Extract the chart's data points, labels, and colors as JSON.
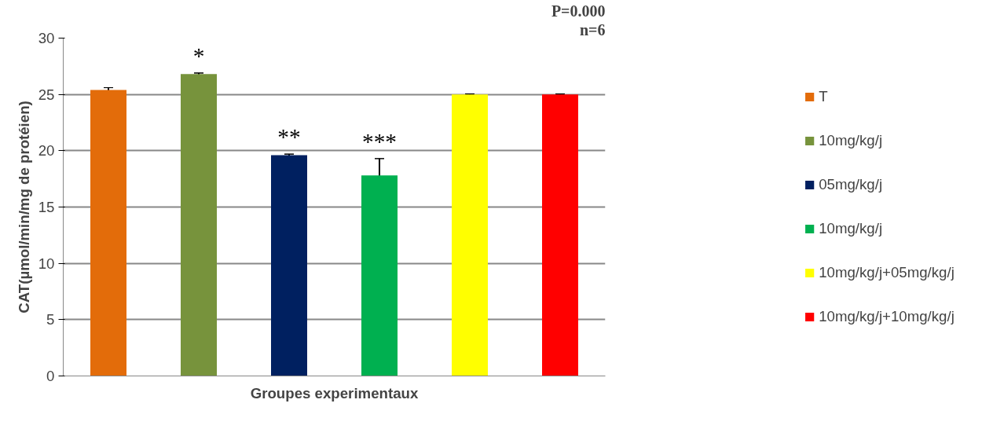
{
  "chart_data": {
    "type": "bar",
    "categories": [
      null,
      null,
      null,
      null,
      null,
      null
    ],
    "xlabel": "Groupes experimentaux",
    "ylabel": "CAT(µmol/min/mg de protéien)",
    "ylim": [
      0,
      30
    ],
    "yticks": [
      0,
      5,
      10,
      15,
      20,
      25,
      30
    ],
    "grid": "y",
    "legend": "right",
    "annotations": [
      "P=0.000",
      "n=6"
    ],
    "series": [
      {
        "name": "T",
        "color": "#e36c0a",
        "values": [
          25.4,
          null,
          null,
          null,
          null,
          null
        ],
        "errors": [
          0.2,
          null,
          null,
          null,
          null,
          null
        ]
      },
      {
        "name": "10mg/kg/j",
        "color": "#77933c",
        "values": [
          null,
          26.8,
          null,
          null,
          null,
          null
        ],
        "errors": [
          null,
          0.1,
          null,
          null,
          null,
          null
        ],
        "value_labels": [
          null,
          "*",
          null,
          null,
          null,
          null
        ]
      },
      {
        "name": "05mg/kg/j",
        "color": "#002060",
        "values": [
          null,
          null,
          19.6,
          null,
          null,
          null
        ],
        "errors": [
          null,
          null,
          0.1,
          null,
          null,
          null
        ],
        "value_labels": [
          null,
          null,
          "**",
          null,
          null,
          null
        ]
      },
      {
        "name": "10mg/kg/j",
        "color": "#00b050",
        "values": [
          null,
          null,
          null,
          17.8,
          null,
          null
        ],
        "errors": [
          null,
          null,
          null,
          1.5,
          null,
          null
        ],
        "value_labels": [
          null,
          null,
          null,
          "***",
          null,
          null
        ]
      },
      {
        "name": "10mg/kg/j+05mg/kg/j",
        "color": "#ffff00",
        "values": [
          null,
          null,
          null,
          null,
          25.0,
          null
        ],
        "errors": [
          null,
          null,
          null,
          null,
          0.05,
          null
        ]
      },
      {
        "name": "10mg/kg/j+10mg/kg/j",
        "color": "#ff0000",
        "values": [
          null,
          null,
          null,
          null,
          null,
          25.0
        ],
        "errors": [
          null,
          null,
          null,
          null,
          null,
          0.05
        ]
      }
    ]
  }
}
